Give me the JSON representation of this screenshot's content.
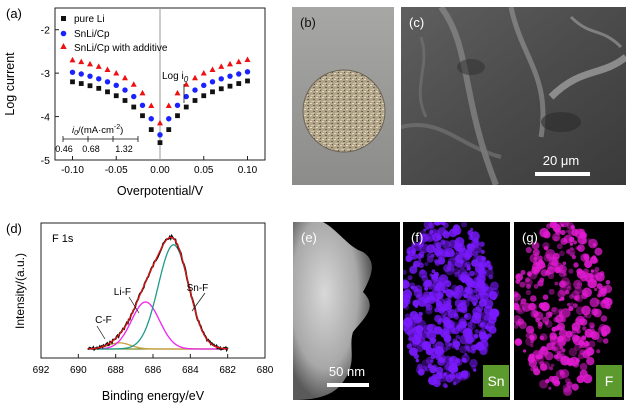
{
  "panels": {
    "a": {
      "label": "(a)"
    },
    "b": {
      "label": "(b)"
    },
    "c": {
      "label": "(c)",
      "scalebar": "20 μm"
    },
    "d": {
      "label": "(d)",
      "peak_name": "F 1s"
    },
    "e": {
      "label": "(e)",
      "scalebar": "50 nm"
    },
    "f": {
      "label": "(f)",
      "element": "Sn"
    },
    "g": {
      "label": "(g)",
      "element": "F"
    }
  },
  "chart_data": [
    {
      "type": "scatter",
      "panel": "a",
      "xlabel": "Overpotential/V",
      "ylabel": "Log current",
      "xlim": [
        -0.12,
        0.12
      ],
      "ylim": [
        -5,
        -1.5
      ],
      "xticks": [
        "-0.10",
        "-0.05",
        "0.00",
        "0.05",
        "0.10"
      ],
      "yticks": [
        "-2",
        "-3",
        "-4",
        "-5"
      ],
      "annotation": "Log i",
      "annotation_sub": "0",
      "inset_title": "i",
      "inset_title_rest": "/(mA·cm",
      "inset_title_sup": "-2",
      "inset_title_end": ")",
      "inset_title_sub": "0",
      "inset_values": [
        "0.46",
        "0.68",
        "1.32"
      ],
      "legend_position": "top-left",
      "series": [
        {
          "name": "pure Li",
          "marker": "square",
          "color": "#111111",
          "x": [
            -0.1,
            -0.09,
            -0.08,
            -0.07,
            -0.06,
            -0.05,
            -0.04,
            -0.03,
            -0.02,
            -0.01,
            0,
            0.01,
            0.02,
            0.03,
            0.04,
            0.05,
            0.06,
            0.07,
            0.08,
            0.09,
            0.1
          ],
          "y": [
            -3.2,
            -3.24,
            -3.29,
            -3.35,
            -3.43,
            -3.52,
            -3.63,
            -3.78,
            -3.98,
            -4.3,
            -4.6,
            -4.3,
            -3.98,
            -3.78,
            -3.63,
            -3.52,
            -3.43,
            -3.36,
            -3.3,
            -3.24,
            -3.18
          ]
        },
        {
          "name": "SnLi/Cp",
          "marker": "circle",
          "color": "#1a22ff",
          "x": [
            -0.1,
            -0.09,
            -0.08,
            -0.07,
            -0.06,
            -0.05,
            -0.04,
            -0.03,
            -0.02,
            -0.01,
            0,
            0.01,
            0.02,
            0.03,
            0.04,
            0.05,
            0.06,
            0.07,
            0.08,
            0.09,
            0.1
          ],
          "y": [
            -2.98,
            -3.02,
            -3.07,
            -3.13,
            -3.2,
            -3.28,
            -3.39,
            -3.54,
            -3.74,
            -4.05,
            -4.42,
            -4.05,
            -3.74,
            -3.54,
            -3.39,
            -3.28,
            -3.2,
            -3.13,
            -3.07,
            -3.02,
            -2.97
          ]
        },
        {
          "name": "SnLi/Cp with additive",
          "marker": "triangle",
          "color": "#ee1111",
          "x": [
            -0.1,
            -0.09,
            -0.08,
            -0.07,
            -0.06,
            -0.05,
            -0.04,
            -0.03,
            -0.02,
            -0.01,
            0,
            0.01,
            0.02,
            0.03,
            0.04,
            0.05,
            0.06,
            0.07,
            0.08,
            0.09,
            0.1
          ],
          "y": [
            -2.7,
            -2.74,
            -2.79,
            -2.85,
            -2.92,
            -3.0,
            -3.11,
            -3.26,
            -3.46,
            -3.75,
            -4.15,
            -3.75,
            -3.46,
            -3.26,
            -3.11,
            -3.0,
            -2.92,
            -2.85,
            -2.79,
            -2.74,
            -2.69
          ]
        }
      ]
    },
    {
      "type": "line",
      "panel": "d",
      "xlabel": "Binding energy/eV",
      "ylabel": "Intensity/(a.u.)",
      "xlim": [
        692,
        680
      ],
      "xticks": [
        "692",
        "690",
        "688",
        "686",
        "684",
        "682",
        "680"
      ],
      "x_reversed": true,
      "peaks": [
        {
          "name": "C-F",
          "center": 687.8,
          "height": 0.055,
          "width": 0.6,
          "color": "#c8a040"
        },
        {
          "name": "Li-F",
          "center": 686.4,
          "height": 0.42,
          "width": 0.75,
          "color": "#ee22ee"
        },
        {
          "name": "Sn-F",
          "center": 684.9,
          "height": 0.93,
          "width": 0.82,
          "color": "#1f9a8a"
        }
      ],
      "envelope_color": "#ee1111",
      "data_color": "#111111",
      "baseline_color": "#7a8c2a"
    }
  ]
}
